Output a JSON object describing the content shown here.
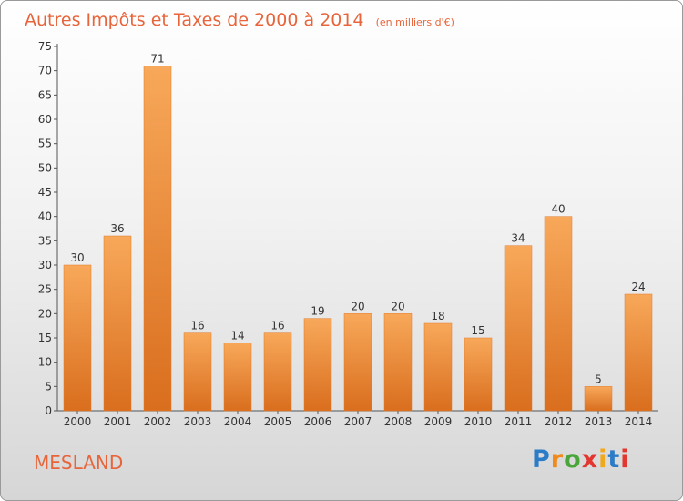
{
  "chart_data": {
    "type": "bar",
    "title": "Autres Impôts et Taxes de 2000 à 2014",
    "subtitle": "(en milliers d'€)",
    "categories": [
      "2000",
      "2001",
      "2002",
      "2003",
      "2004",
      "2005",
      "2006",
      "2007",
      "2008",
      "2009",
      "2010",
      "2011",
      "2012",
      "2013",
      "2014"
    ],
    "values": [
      30,
      36,
      71,
      16,
      14,
      16,
      19,
      20,
      20,
      18,
      15,
      34,
      40,
      5,
      24
    ],
    "ylim": [
      0,
      75
    ],
    "yticks": [
      0,
      5,
      10,
      15,
      20,
      25,
      30,
      35,
      40,
      45,
      50,
      55,
      60,
      65,
      70,
      75
    ],
    "grid": false,
    "bar_color": "#f0903a"
  },
  "place_label": "MESLAND",
  "logo": {
    "text": "Proxiti",
    "letter_colors": [
      "#2b7cc7",
      "#f08a1c",
      "#4aa63a",
      "#e2372f",
      "#f0a81c",
      "#2b7cc7",
      "#e2372f"
    ]
  }
}
